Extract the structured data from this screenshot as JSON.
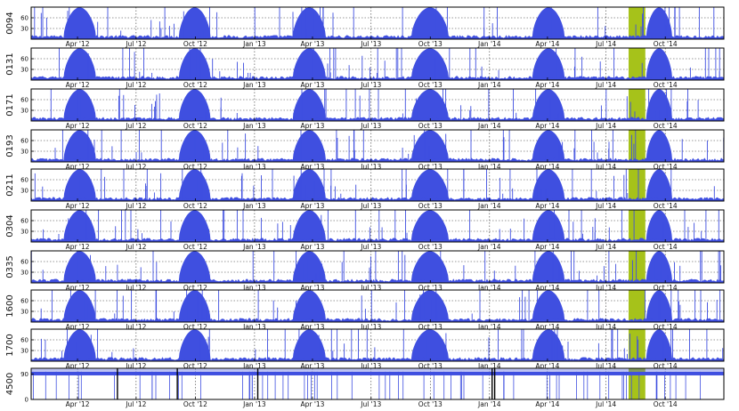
{
  "colors": {
    "series": "#3f4fe0",
    "gap_highlight": "#a6c21a",
    "panel_border": "#000000",
    "grid": "#333333",
    "background": "#ffffff"
  },
  "chart_data": [
    {
      "type": "area",
      "id": "0094",
      "ylabel": "0094",
      "yticks": [
        "30",
        "60"
      ],
      "ylim": [
        0,
        90
      ],
      "xtick_labels": [
        "Apr '12",
        "Jul '12",
        "Oct '12",
        "Jan '13",
        "Apr '13",
        "Jul '13",
        "Oct '13",
        "Jan '14",
        "Apr '14",
        "Jul '14",
        "Oct '14"
      ],
      "x_range": [
        "2012-01-20",
        "2014-12-31"
      ],
      "grid": true,
      "annotations": [
        {
          "type": "shaded_span",
          "from": "2014-08-05",
          "to": "2014-08-31",
          "color": "#a6c21a"
        }
      ]
    },
    {
      "type": "area",
      "id": "0131",
      "ylabel": "0131",
      "yticks": [
        "30",
        "60"
      ],
      "ylim": [
        0,
        90
      ],
      "xtick_labels": [
        "Apr '12",
        "Jul '12",
        "Oct '12",
        "Jan '13",
        "Apr '13",
        "Jul '13",
        "Oct '13",
        "Jan '14",
        "Apr '14",
        "Jul '14",
        "Oct '14"
      ],
      "x_range": [
        "2012-01-20",
        "2014-12-31"
      ],
      "grid": true,
      "annotations": [
        {
          "type": "shaded_span",
          "from": "2014-08-05",
          "to": "2014-08-31",
          "color": "#a6c21a"
        }
      ]
    },
    {
      "type": "area",
      "id": "0171",
      "ylabel": "0171",
      "yticks": [
        "30",
        "60"
      ],
      "ylim": [
        0,
        90
      ],
      "xtick_labels": [
        "Apr '12",
        "Jul '12",
        "Oct '12",
        "Jan '13",
        "Apr '13",
        "Jul '13",
        "Oct '13",
        "Jan '14",
        "Apr '14",
        "Jul '14",
        "Oct '14"
      ],
      "x_range": [
        "2012-01-20",
        "2014-12-31"
      ],
      "grid": true,
      "annotations": [
        {
          "type": "shaded_span",
          "from": "2014-08-05",
          "to": "2014-08-31",
          "color": "#a6c21a"
        }
      ]
    },
    {
      "type": "area",
      "id": "0193",
      "ylabel": "0193",
      "yticks": [
        "30",
        "60"
      ],
      "ylim": [
        0,
        90
      ],
      "xtick_labels": [
        "Apr '12",
        "Jul '12",
        "Oct '12",
        "Jan '13",
        "Apr '13",
        "Jul '13",
        "Oct '13",
        "Jan '14",
        "Apr '14",
        "Jul '14",
        "Oct '14"
      ],
      "x_range": [
        "2012-01-20",
        "2014-12-31"
      ],
      "grid": true,
      "annotations": [
        {
          "type": "shaded_span",
          "from": "2014-08-05",
          "to": "2014-08-31",
          "color": "#a6c21a"
        }
      ]
    },
    {
      "type": "area",
      "id": "0211",
      "ylabel": "0211",
      "yticks": [
        "30",
        "60"
      ],
      "ylim": [
        0,
        90
      ],
      "xtick_labels": [
        "Apr '12",
        "Jul '12",
        "Oct '12",
        "Jan '13",
        "Apr '13",
        "Jul '13",
        "Oct '13",
        "Jan '14",
        "Apr '14",
        "Jul '14",
        "Oct '14"
      ],
      "x_range": [
        "2012-01-20",
        "2014-12-31"
      ],
      "grid": true,
      "annotations": [
        {
          "type": "shaded_span",
          "from": "2014-08-05",
          "to": "2014-08-31",
          "color": "#a6c21a"
        }
      ]
    },
    {
      "type": "area",
      "id": "0304",
      "ylabel": "0304",
      "yticks": [
        "30",
        "60"
      ],
      "ylim": [
        0,
        90
      ],
      "xtick_labels": [
        "Apr '12",
        "Jul '12",
        "Oct '12",
        "Jan '13",
        "Apr '13",
        "Jul '13",
        "Oct '13",
        "Jan '14",
        "Apr '14",
        "Jul '14",
        "Oct '14"
      ],
      "x_range": [
        "2012-01-20",
        "2014-12-31"
      ],
      "grid": true,
      "annotations": [
        {
          "type": "shaded_span",
          "from": "2014-08-05",
          "to": "2014-08-31",
          "color": "#a6c21a"
        }
      ]
    },
    {
      "type": "area",
      "id": "0335",
      "ylabel": "0335",
      "yticks": [
        "30",
        "60"
      ],
      "ylim": [
        0,
        90
      ],
      "xtick_labels": [
        "Apr '12",
        "Jul '12",
        "Oct '12",
        "Jan '13",
        "Apr '13",
        "Jul '13",
        "Oct '13",
        "Jan '14",
        "Apr '14",
        "Jul '14",
        "Oct '14"
      ],
      "x_range": [
        "2012-01-20",
        "2014-12-31"
      ],
      "grid": true,
      "annotations": [
        {
          "type": "shaded_span",
          "from": "2014-08-05",
          "to": "2014-08-31",
          "color": "#a6c21a"
        }
      ]
    },
    {
      "type": "area",
      "id": "1600",
      "ylabel": "1600",
      "yticks": [
        "30",
        "60"
      ],
      "ylim": [
        0,
        90
      ],
      "xtick_labels": [
        "Apr '12",
        "Jul '12",
        "Oct '12",
        "Jan '13",
        "Apr '13",
        "Jul '13",
        "Oct '13",
        "Jan '14",
        "Apr '14",
        "Jul '14",
        "Oct '14"
      ],
      "x_range": [
        "2012-01-20",
        "2014-12-31"
      ],
      "grid": true,
      "annotations": [
        {
          "type": "shaded_span",
          "from": "2014-08-05",
          "to": "2014-08-31",
          "color": "#a6c21a"
        }
      ]
    },
    {
      "type": "area",
      "id": "1700",
      "ylabel": "1700",
      "yticks": [
        "30",
        "60"
      ],
      "ylim": [
        0,
        90
      ],
      "xtick_labels": [
        "Apr '12",
        "Jul '12",
        "Oct '12",
        "Jan '13",
        "Apr '13",
        "Jul '13",
        "Oct '13",
        "Jan '14",
        "Apr '14",
        "Jul '14",
        "Oct '14"
      ],
      "x_range": [
        "2012-01-20",
        "2014-12-31"
      ],
      "grid": true,
      "annotations": [
        {
          "type": "shaded_span",
          "from": "2014-08-05",
          "to": "2014-08-31",
          "color": "#a6c21a"
        }
      ]
    },
    {
      "type": "area",
      "id": "4500",
      "ylabel": "4500",
      "yticks": [
        "0",
        "90"
      ],
      "ylim": [
        0,
        110
      ],
      "xtick_labels": [
        "Apr '12",
        "Jul '12",
        "Oct '12",
        "Jan '13",
        "Apr '13",
        "Jul '13",
        "Oct '13",
        "Jan '14",
        "Apr '14",
        "Jul '14",
        "Oct '14"
      ],
      "x_range": [
        "2012-01-20",
        "2014-12-31"
      ],
      "grid": true,
      "annotations": [
        {
          "type": "shaded_span",
          "from": "2014-08-05",
          "to": "2014-08-31",
          "color": "#a6c21a"
        }
      ]
    }
  ]
}
